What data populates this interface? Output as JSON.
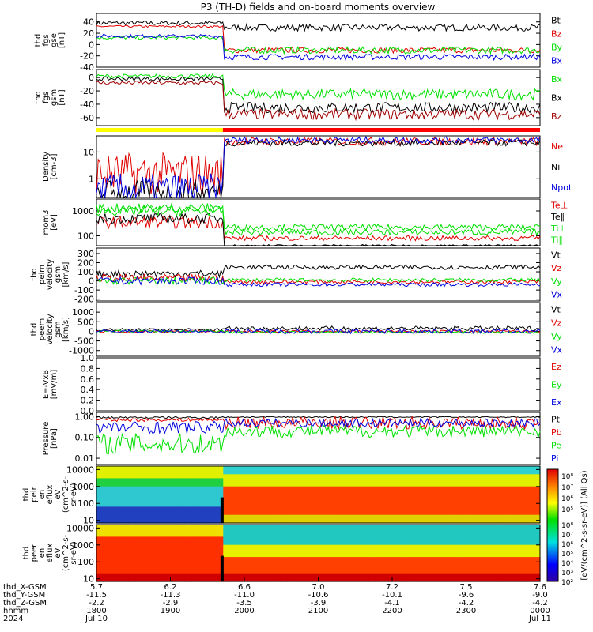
{
  "title": "P3 (TH-D) fields and on-board moments overview",
  "colors": {
    "black": "#000000",
    "red": "#e00000",
    "green": "#00e000",
    "blue": "#0000e0",
    "darkred": "#a00000",
    "yellow": "#ffff00",
    "barred": "#ff0000"
  },
  "chart_data": [
    {
      "type": "line",
      "ylabel": [
        "thd",
        "fgs",
        "gse",
        "[nT]"
      ],
      "ylim": [
        -40,
        55
      ],
      "ticks": [
        "40",
        "20",
        "0",
        "-20",
        "-40"
      ],
      "tickvals": [
        40,
        20,
        0,
        -20,
        -40
      ],
      "series": [
        {
          "name": "Bt",
          "color": "black"
        },
        {
          "name": "Bz",
          "color": "red"
        },
        {
          "name": "By",
          "color": "green"
        },
        {
          "name": "Bx",
          "color": "blue"
        }
      ]
    },
    {
      "type": "line",
      "ylabel": [
        "thd",
        "fgs",
        "gsm",
        "[nT]"
      ],
      "ylim": [
        -72,
        12
      ],
      "ticks": [
        "0",
        "-20",
        "-40",
        "-60"
      ],
      "tickvals": [
        0,
        -20,
        -40,
        -60
      ],
      "series": [
        {
          "name": "Bx",
          "color": "green"
        },
        {
          "name": "Bx",
          "color": "black"
        },
        {
          "name": "Bz",
          "color": "darkred"
        }
      ]
    },
    {
      "type": "line",
      "ylabel": [
        "Density",
        "[cm-3]"
      ],
      "ylog": true,
      "ylim": [
        0.2,
        40
      ],
      "ticks": [
        "10",
        "1"
      ],
      "tickvals": [
        10,
        1
      ],
      "series": [
        {
          "name": "Ne",
          "color": "red"
        },
        {
          "name": "Ni",
          "color": "black"
        },
        {
          "name": "Npot",
          "color": "blue"
        }
      ]
    },
    {
      "type": "line",
      "ylabel": [
        "mom3",
        "[eV]"
      ],
      "ylog": true,
      "ylim": [
        40,
        3000
      ],
      "ticks": [
        "1000",
        "100"
      ],
      "tickvals": [
        1000,
        100
      ],
      "series": [
        {
          "name": "Te⊥",
          "color": "red"
        },
        {
          "name": "Te∥",
          "color": "black"
        },
        {
          "name": "Ti⊥",
          "color": "green"
        },
        {
          "name": "Ti∥",
          "color": "green"
        }
      ]
    },
    {
      "type": "line",
      "ylabel": [
        "thd",
        "peim",
        "velocity",
        "gsm",
        "[km/s]"
      ],
      "ylim": [
        -220,
        360
      ],
      "ticks": [
        "300",
        "200",
        "100",
        "0",
        "-100",
        "-200"
      ],
      "tickvals": [
        300,
        200,
        100,
        0,
        -100,
        -200
      ],
      "series": [
        {
          "name": "Vt",
          "color": "black"
        },
        {
          "name": "Vz",
          "color": "red"
        },
        {
          "name": "Vy",
          "color": "green"
        },
        {
          "name": "Vx",
          "color": "blue"
        }
      ]
    },
    {
      "type": "line",
      "ylabel": [
        "thd",
        "peem",
        "velocity",
        "gsm",
        "[km/s]"
      ],
      "ylim": [
        -1300,
        1500
      ],
      "ticks": [
        "1000",
        "500",
        "0",
        "-500",
        "-1000"
      ],
      "tickvals": [
        1000,
        500,
        0,
        -500,
        -1000
      ],
      "series": [
        {
          "name": "Vt",
          "color": "black"
        },
        {
          "name": "Vz",
          "color": "red"
        },
        {
          "name": "Vy",
          "color": "green"
        },
        {
          "name": "Vx",
          "color": "blue"
        }
      ]
    },
    {
      "type": "line",
      "ylabel": [
        "E=-VxB",
        "[mV/m]"
      ],
      "ylim": [
        0,
        1
      ],
      "ticks": [
        "1.0",
        "0.8",
        "0.6",
        "0.4",
        "0.2",
        "0.0"
      ],
      "tickvals": [
        1,
        0.8,
        0.6,
        0.4,
        0.2,
        0
      ],
      "series": [
        {
          "name": "Ez",
          "color": "red"
        },
        {
          "name": "Ey",
          "color": "green"
        },
        {
          "name": "Ex",
          "color": "blue"
        }
      ]
    },
    {
      "type": "line",
      "ylabel": [
        "Pressure",
        "[nPa]"
      ],
      "ylog": true,
      "ylim": [
        0.005,
        1.6
      ],
      "ticks": [
        "1.00",
        "0.10",
        "0.01"
      ],
      "tickvals": [
        1,
        0.1,
        0.01
      ],
      "series": [
        {
          "name": "Pt",
          "color": "black"
        },
        {
          "name": "Pb",
          "color": "red"
        },
        {
          "name": "Pe",
          "color": "green"
        },
        {
          "name": "Pi",
          "color": "blue"
        }
      ]
    },
    {
      "type": "heatmap",
      "ylabel": [
        "thd",
        "peir",
        "en",
        "eflux",
        "eV",
        "(cm^2-s-",
        "sr-eV)"
      ],
      "ylog": true,
      "ylim": [
        7,
        16000
      ],
      "ticks": [
        "10000",
        "1000",
        "100",
        "10"
      ],
      "tickvals": [
        10000,
        1000,
        100,
        10
      ]
    },
    {
      "type": "heatmap",
      "ylabel": [
        "thd",
        "peer",
        "en",
        "eflux",
        "eV",
        "(cm^2-s-",
        "sr-eV)"
      ],
      "ylog": true,
      "ylim": [
        7,
        16000
      ],
      "ticks": [
        "10000",
        "1000",
        "100",
        "10"
      ],
      "tickvals": [
        10000,
        1000,
        100,
        10
      ]
    }
  ],
  "colorbar": {
    "label": "[eV/(cm^2-s-sr-eV)] (All Qs)",
    "ticks_top": [
      "10⁸",
      "10⁷",
      "10⁶",
      "10⁵"
    ],
    "ticks_bottom": [
      "10⁸",
      "10⁷",
      "10⁶",
      "10⁵",
      "10⁴",
      "10³",
      "10²"
    ]
  },
  "xaxis": {
    "rows": [
      {
        "label": "thd_X-GSM",
        "values": [
          "5.7",
          "6.2",
          "6.6",
          "7.0",
          "7.2",
          "7.5",
          "7.6"
        ]
      },
      {
        "label": "thd_Y-GSM",
        "values": [
          "-11.5",
          "-11.3",
          "-11.0",
          "-10.6",
          "-10.1",
          "-9.6",
          "-9.0"
        ]
      },
      {
        "label": "thd_Z-GSM",
        "values": [
          "-2.2",
          "-2.9",
          "-3.5",
          "-3.9",
          "-4.1",
          "-4.2",
          "-4.2"
        ]
      },
      {
        "label": "hhmm",
        "values": [
          "1800",
          "1900",
          "2000",
          "2100",
          "2200",
          "2300",
          "0000"
        ]
      },
      {
        "label": "2024",
        "values": [
          "Jul 10",
          "",
          "",
          "",
          "",
          "",
          "Jul 11"
        ]
      }
    ]
  }
}
